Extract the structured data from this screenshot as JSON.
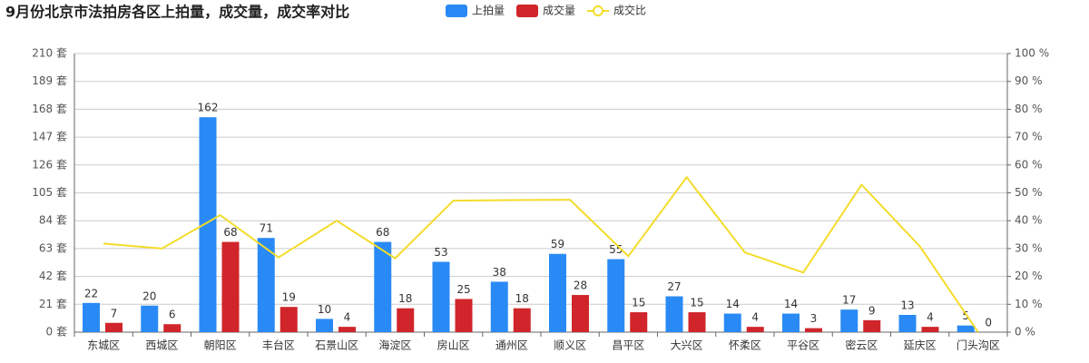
{
  "chart_data": {
    "type": "bar-line",
    "title": "9月份北京市法拍房各区上拍量，成交量，成交率对比",
    "categories": [
      "东城区",
      "西城区",
      "朝阳区",
      "丰台区",
      "石景山区",
      "海淀区",
      "房山区",
      "通州区",
      "顺义区",
      "昌平区",
      "大兴区",
      "怀柔区",
      "平谷区",
      "密云区",
      "延庆区",
      "门头沟区"
    ],
    "series": [
      {
        "name": "上拍量",
        "type": "bar",
        "color": "#2a8af5",
        "values": [
          22,
          20,
          162,
          71,
          10,
          68,
          53,
          38,
          59,
          55,
          27,
          14,
          14,
          17,
          13,
          5
        ]
      },
      {
        "name": "成交量",
        "type": "bar",
        "color": "#d0252a",
        "values": [
          7,
          6,
          68,
          19,
          4,
          18,
          25,
          18,
          28,
          15,
          15,
          4,
          3,
          9,
          4,
          0
        ]
      },
      {
        "name": "成交比",
        "type": "line",
        "axis": "y2",
        "color": "#f3dc2a",
        "values": [
          31.8,
          30,
          42,
          26.8,
          40,
          26.5,
          47.2,
          47.4,
          47.5,
          27.3,
          55.6,
          28.6,
          21.4,
          52.9,
          30.8,
          0
        ]
      }
    ],
    "ylim": [
      0,
      210
    ],
    "yticks": [
      {
        "value": 0,
        "label": "0 套"
      },
      {
        "value": 21,
        "label": "21 套"
      },
      {
        "value": 42,
        "label": "42 套"
      },
      {
        "value": 63,
        "label": "63 套"
      },
      {
        "value": 84,
        "label": "84 套"
      },
      {
        "value": 105,
        "label": "105 套"
      },
      {
        "value": 126,
        "label": "126 套"
      },
      {
        "value": 147,
        "label": "147 套"
      },
      {
        "value": 168,
        "label": "168 套"
      },
      {
        "value": 189,
        "label": "189 套"
      },
      {
        "value": 210,
        "label": "210 套"
      }
    ],
    "y2lim": [
      0,
      100
    ],
    "y2ticks": [
      {
        "value": 0,
        "label": "0 %"
      },
      {
        "value": 10,
        "label": "10 %"
      },
      {
        "value": 20,
        "label": "20 %"
      },
      {
        "value": 30,
        "label": "30 %"
      },
      {
        "value": 40,
        "label": "40 %"
      },
      {
        "value": 50,
        "label": "50 %"
      },
      {
        "value": 60,
        "label": "60 %"
      },
      {
        "value": 70,
        "label": "70 %"
      },
      {
        "value": 80,
        "label": "80 %"
      },
      {
        "value": 90,
        "label": "90 %"
      },
      {
        "value": 100,
        "label": "100 %"
      }
    ],
    "grid": true
  }
}
